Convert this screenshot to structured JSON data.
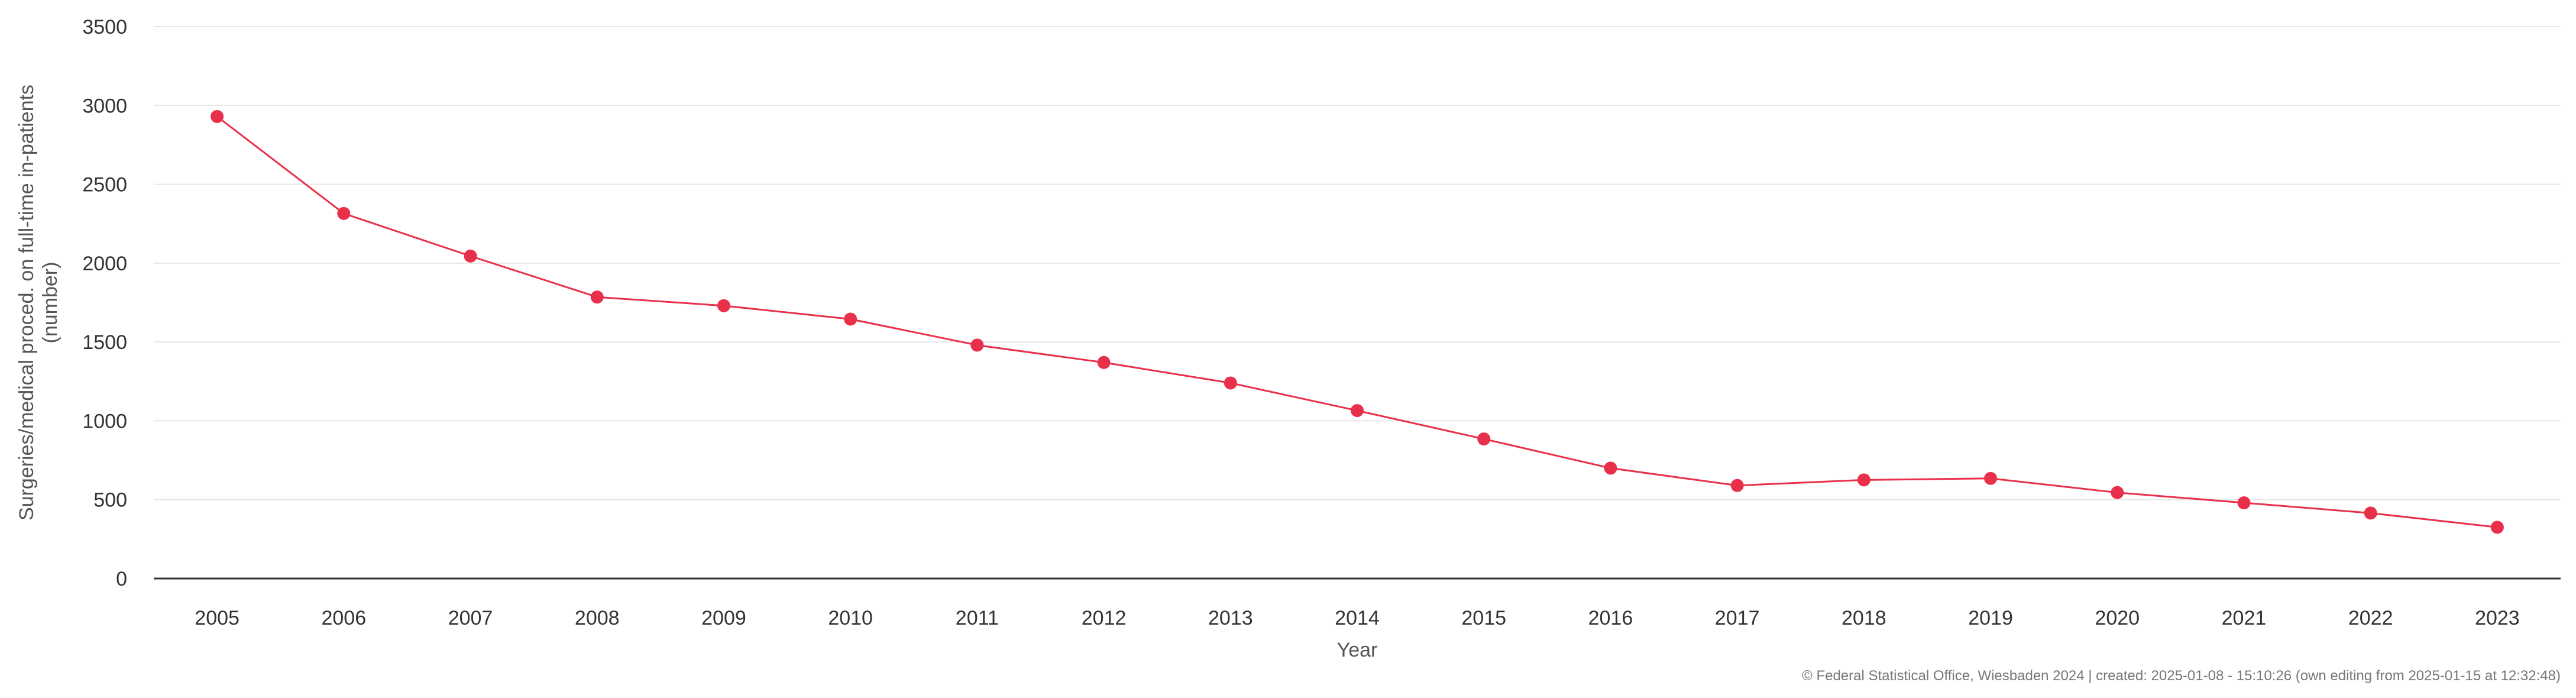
{
  "chart_data": {
    "type": "line",
    "xlabel": "Year",
    "ylabel_lines": [
      "Surgeries/medical proced. on full-time in-patients",
      "(number)"
    ],
    "ylim": [
      0,
      3500
    ],
    "y_ticks": [
      0,
      500,
      1000,
      1500,
      2000,
      2500,
      3000,
      3500
    ],
    "grid": true,
    "categories": [
      "2005",
      "2006",
      "2007",
      "2008",
      "2009",
      "2010",
      "2011",
      "2012",
      "2013",
      "2014",
      "2015",
      "2016",
      "2017",
      "2018",
      "2019",
      "2020",
      "2021",
      "2022",
      "2023"
    ],
    "series": [
      {
        "color": "#e8304a",
        "values": [
          2930,
          2315,
          2045,
          1785,
          1730,
          1645,
          1480,
          1370,
          1240,
          1065,
          885,
          700,
          590,
          625,
          635,
          545,
          480,
          415,
          325
        ]
      }
    ]
  },
  "credit": "© Federal Statistical Office, Wiesbaden 2024 | created: 2025-01-08 - 15:10:26 (own editing from 2025-01-15 at 12:32:48)"
}
